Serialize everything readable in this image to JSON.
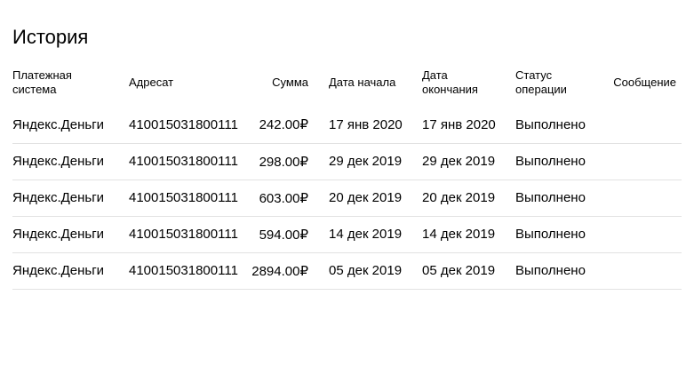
{
  "page": {
    "title": "История"
  },
  "table": {
    "columns": [
      {
        "id": "payment-system",
        "label": "Платежная система",
        "align": "left"
      },
      {
        "id": "recipient",
        "label": "Адресат",
        "align": "left"
      },
      {
        "id": "amount",
        "label": "Сумма",
        "align": "right"
      },
      {
        "id": "start-date",
        "label": "Дата начала",
        "align": "left"
      },
      {
        "id": "end-date",
        "label": "Дата окончания",
        "align": "left"
      },
      {
        "id": "status",
        "label": "Статус операции",
        "align": "left"
      },
      {
        "id": "message",
        "label": "Сообщение",
        "align": "right"
      }
    ],
    "rows": [
      [
        "Яндекс.Деньги",
        "410015031800111",
        "242.00₽",
        "17 янв 2020",
        "17 янв 2020",
        "Выполнено",
        ""
      ],
      [
        "Яндекс.Деньги",
        "410015031800111",
        "298.00₽",
        "29 дек 2019",
        "29 дек 2019",
        "Выполнено",
        ""
      ],
      [
        "Яндекс.Деньги",
        "410015031800111",
        "603.00₽",
        "20 дек 2019",
        "20 дек 2019",
        "Выполнено",
        ""
      ],
      [
        "Яндекс.Деньги",
        "410015031800111",
        "594.00₽",
        "14 дек 2019",
        "14 дек 2019",
        "Выполнено",
        ""
      ],
      [
        "Яндекс.Деньги",
        "410015031800111",
        "2894.00₽",
        "05 дек 2019",
        "05 дек 2019",
        "Выполнено",
        ""
      ]
    ]
  },
  "colors": {
    "background": "#ffffff",
    "text": "#000000",
    "separator": "#e2e2e2"
  }
}
